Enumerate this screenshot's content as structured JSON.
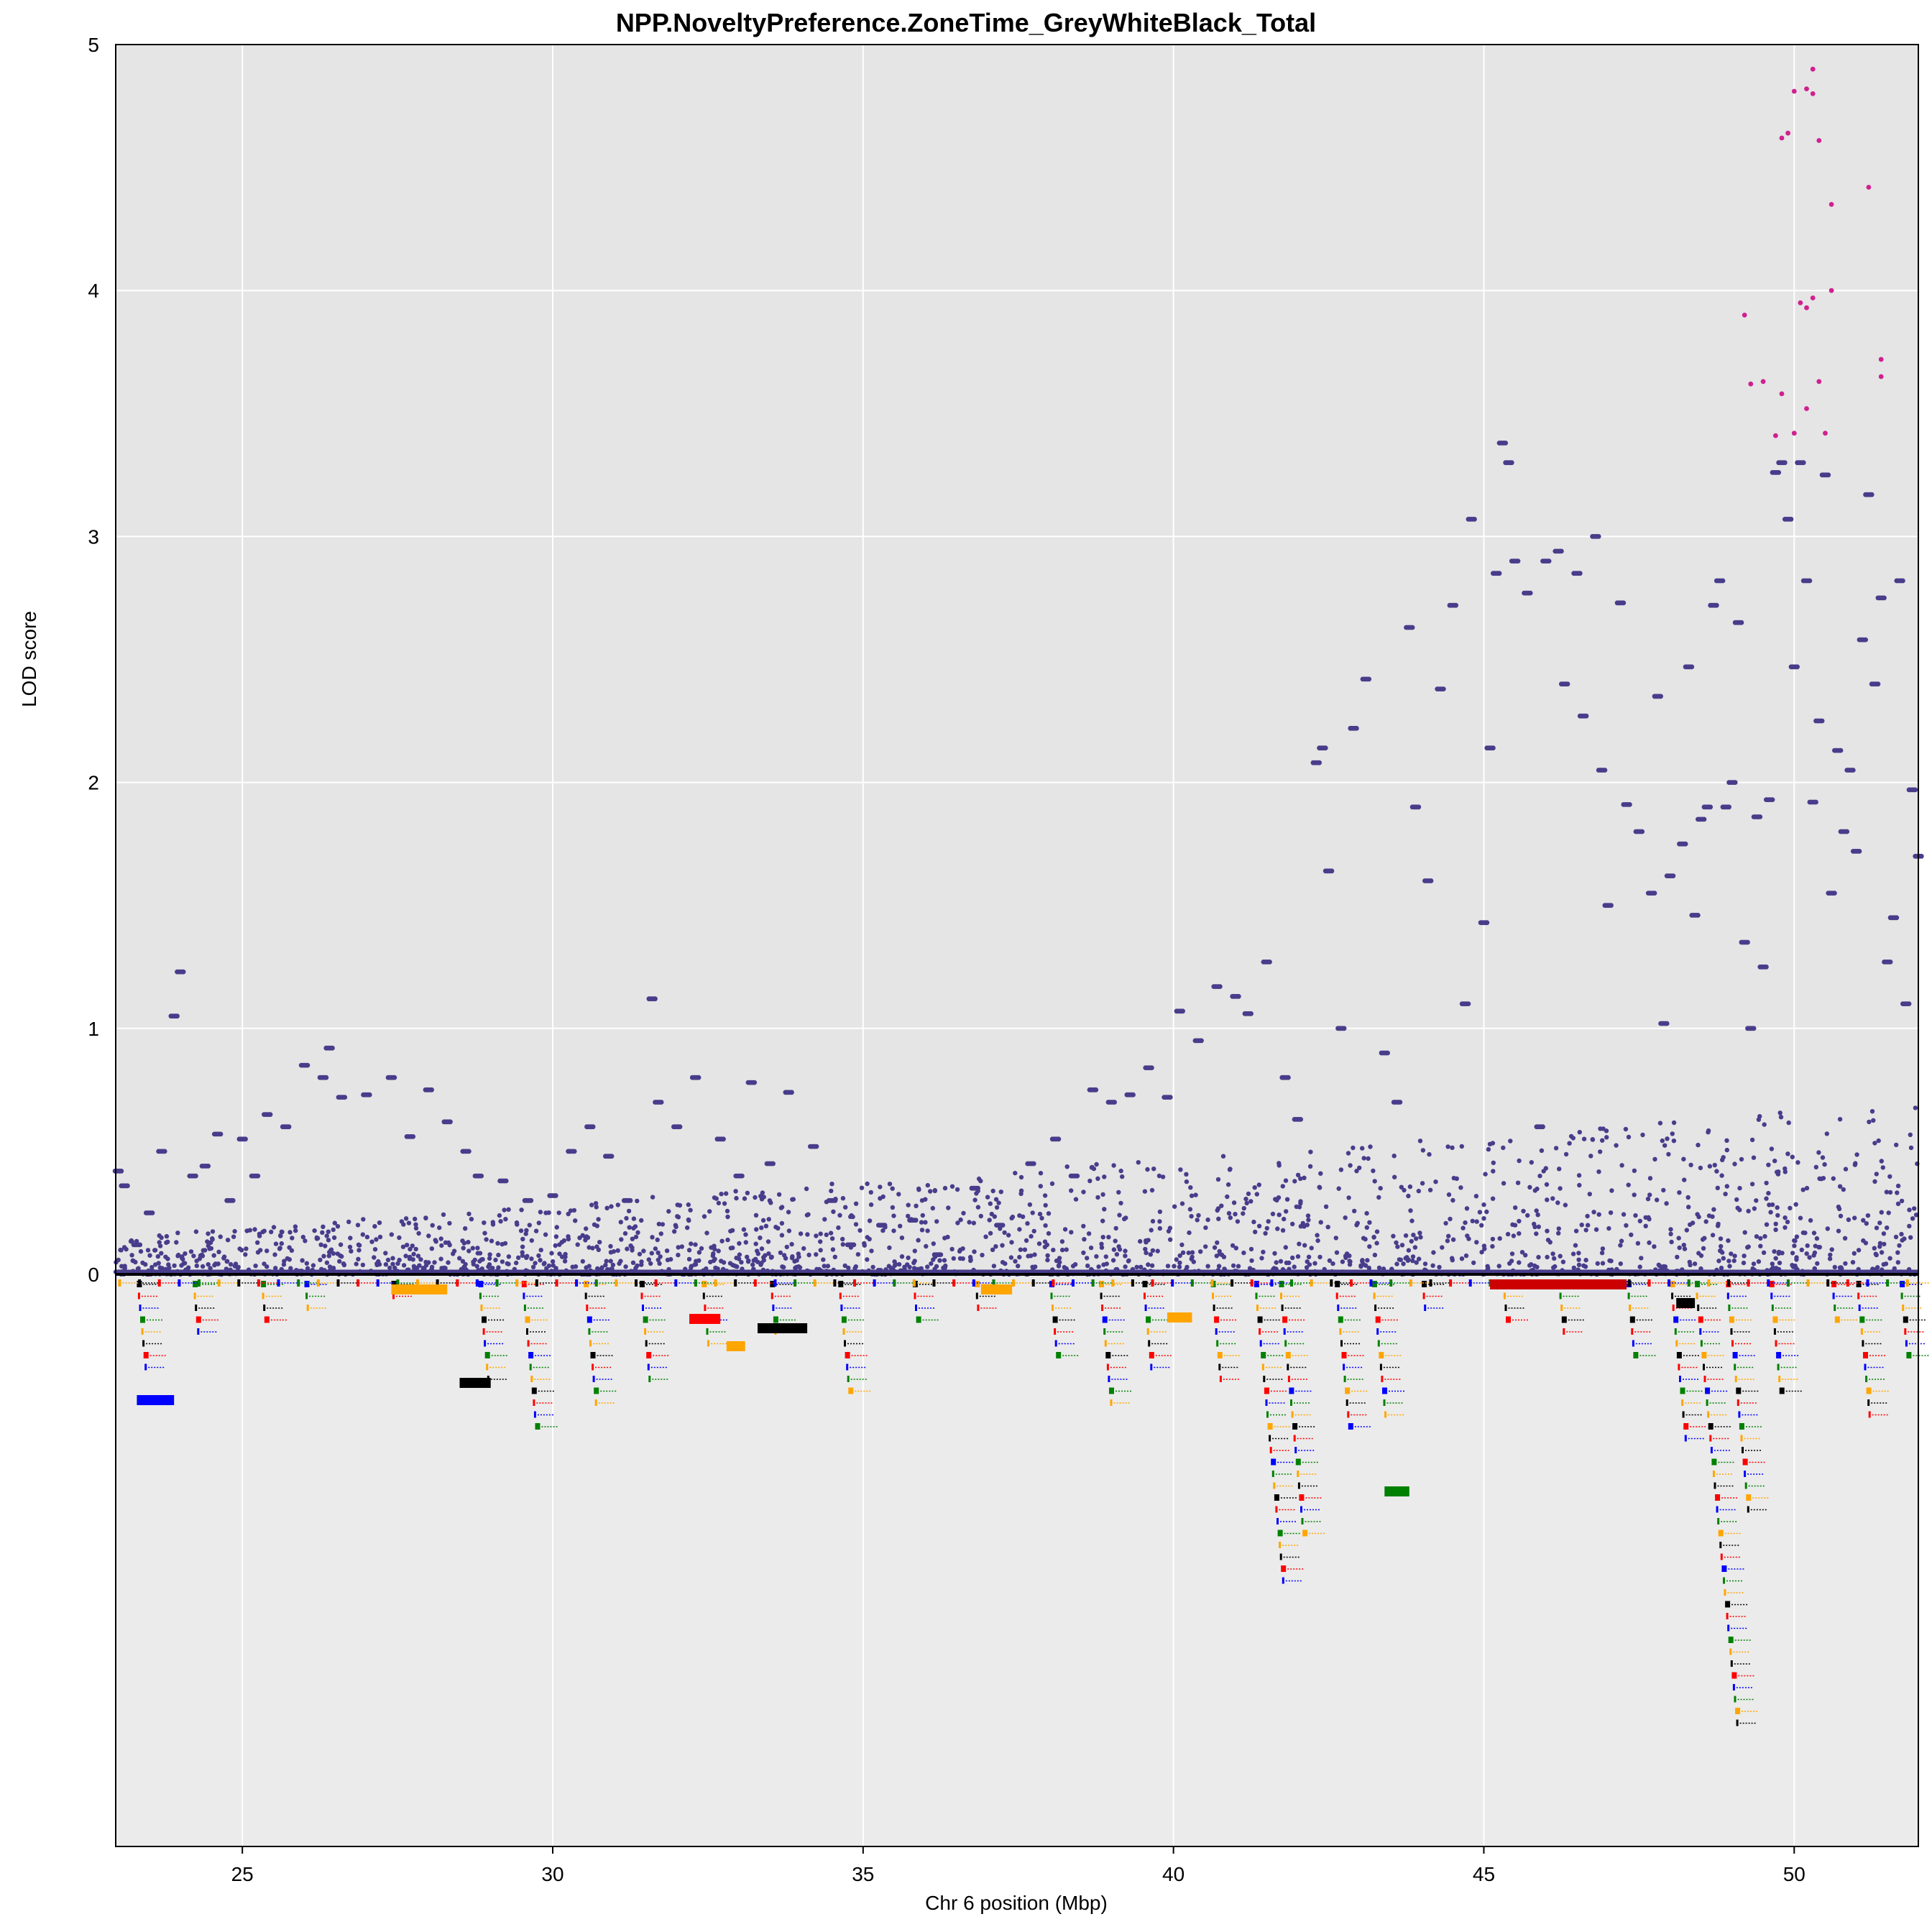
{
  "chart_data": {
    "type": "scatter",
    "title": "NPP.NoveltyPreference.ZoneTime_GreyWhiteBlack_Total",
    "xlabel": "Chr 6 position (Mbp)",
    "ylabel": "LOD score",
    "xlim": [
      22.96,
      52.0
    ],
    "ylim": [
      0,
      5
    ],
    "x_ticks": [
      25,
      30,
      35,
      40,
      45,
      50
    ],
    "y_ticks": [
      0,
      1,
      2,
      3,
      4,
      5
    ],
    "grid": true,
    "colors": {
      "panel_background": "#e5e5e5",
      "gene_panel_background": "#ebebeb",
      "grid": "#ffffff",
      "points": "#483d8b",
      "highlight_points": "#d02090",
      "gene_colors": [
        "#000000",
        "#ff0000",
        "#0000ff",
        "#008000",
        "#ffa500"
      ]
    },
    "series": [
      {
        "color": "#483d8b",
        "points": [
          [
            23.0,
            0.42
          ],
          [
            23.1,
            0.36
          ],
          [
            23.3,
            0.12
          ],
          [
            23.5,
            0.25
          ],
          [
            23.7,
            0.5
          ],
          [
            23.9,
            1.05
          ],
          [
            24.0,
            1.23
          ],
          [
            24.2,
            0.4
          ],
          [
            24.4,
            0.44
          ],
          [
            24.6,
            0.57
          ],
          [
            24.8,
            0.3
          ],
          [
            25.0,
            0.55
          ],
          [
            25.2,
            0.4
          ],
          [
            25.4,
            0.65
          ],
          [
            25.7,
            0.6
          ],
          [
            26.0,
            0.85
          ],
          [
            26.3,
            0.8
          ],
          [
            26.4,
            0.92
          ],
          [
            26.6,
            0.72
          ],
          [
            27.0,
            0.73
          ],
          [
            27.4,
            0.8
          ],
          [
            27.7,
            0.56
          ],
          [
            28.0,
            0.75
          ],
          [
            28.3,
            0.62
          ],
          [
            28.6,
            0.5
          ],
          [
            28.8,
            0.4
          ],
          [
            29.2,
            0.38
          ],
          [
            29.6,
            0.3
          ],
          [
            30.0,
            0.32
          ],
          [
            30.3,
            0.5
          ],
          [
            30.6,
            0.6
          ],
          [
            30.9,
            0.48
          ],
          [
            31.2,
            0.3
          ],
          [
            31.6,
            1.12
          ],
          [
            31.7,
            0.7
          ],
          [
            32.0,
            0.6
          ],
          [
            32.3,
            0.8
          ],
          [
            32.7,
            0.55
          ],
          [
            33.0,
            0.4
          ],
          [
            33.2,
            0.78
          ],
          [
            33.5,
            0.45
          ],
          [
            33.8,
            0.74
          ],
          [
            34.2,
            0.52
          ],
          [
            34.5,
            0.3
          ],
          [
            34.8,
            0.12
          ],
          [
            35.3,
            0.2
          ],
          [
            35.8,
            0.22
          ],
          [
            36.2,
            0.08
          ],
          [
            36.8,
            0.35
          ],
          [
            37.2,
            0.2
          ],
          [
            37.7,
            0.45
          ],
          [
            38.1,
            0.55
          ],
          [
            38.4,
            0.4
          ],
          [
            38.7,
            0.75
          ],
          [
            39.0,
            0.7
          ],
          [
            39.3,
            0.73
          ],
          [
            39.6,
            0.84
          ],
          [
            39.9,
            0.72
          ],
          [
            40.1,
            1.07
          ],
          [
            40.4,
            0.95
          ],
          [
            40.7,
            1.17
          ],
          [
            41.0,
            1.13
          ],
          [
            41.2,
            1.06
          ],
          [
            41.5,
            1.27
          ],
          [
            41.8,
            0.8
          ],
          [
            42.0,
            0.63
          ],
          [
            42.3,
            2.08
          ],
          [
            42.4,
            2.14
          ],
          [
            42.5,
            1.64
          ],
          [
            42.7,
            1.0
          ],
          [
            42.9,
            2.22
          ],
          [
            43.1,
            2.42
          ],
          [
            43.4,
            0.9
          ],
          [
            43.6,
            0.7
          ],
          [
            43.8,
            2.63
          ],
          [
            43.9,
            1.9
          ],
          [
            44.1,
            1.6
          ],
          [
            44.3,
            2.38
          ],
          [
            44.5,
            2.72
          ],
          [
            44.7,
            1.1
          ],
          [
            44.8,
            3.07
          ],
          [
            45.0,
            1.43
          ],
          [
            45.1,
            2.14
          ],
          [
            45.2,
            2.85
          ],
          [
            45.3,
            3.38
          ],
          [
            45.4,
            3.3
          ],
          [
            45.5,
            2.9
          ],
          [
            45.7,
            2.77
          ],
          [
            45.9,
            0.6
          ],
          [
            46.0,
            2.9
          ],
          [
            46.2,
            2.94
          ],
          [
            46.3,
            2.4
          ],
          [
            46.5,
            2.85
          ],
          [
            46.6,
            2.27
          ],
          [
            46.8,
            3.0
          ],
          [
            46.9,
            2.05
          ],
          [
            47.0,
            1.5
          ],
          [
            47.2,
            2.73
          ],
          [
            47.3,
            1.91
          ],
          [
            47.5,
            1.8
          ],
          [
            47.7,
            1.55
          ],
          [
            47.8,
            2.35
          ],
          [
            47.9,
            1.02
          ],
          [
            48.0,
            1.62
          ],
          [
            48.2,
            1.75
          ],
          [
            48.3,
            2.47
          ],
          [
            48.4,
            1.46
          ],
          [
            48.5,
            1.85
          ],
          [
            48.6,
            1.9
          ],
          [
            48.7,
            2.72
          ],
          [
            48.8,
            2.82
          ],
          [
            48.9,
            1.9
          ],
          [
            49.0,
            2.0
          ],
          [
            49.1,
            2.65
          ],
          [
            49.2,
            1.35
          ],
          [
            49.3,
            1.0
          ],
          [
            49.4,
            1.86
          ],
          [
            49.5,
            1.25
          ],
          [
            49.6,
            1.93
          ],
          [
            49.7,
            3.26
          ],
          [
            49.8,
            3.3
          ],
          [
            49.9,
            3.07
          ],
          [
            50.0,
            2.47
          ],
          [
            50.1,
            3.3
          ],
          [
            50.2,
            2.82
          ],
          [
            50.3,
            1.92
          ],
          [
            50.4,
            2.25
          ],
          [
            50.5,
            3.25
          ],
          [
            50.6,
            1.55
          ],
          [
            50.7,
            2.13
          ],
          [
            50.8,
            1.8
          ],
          [
            50.9,
            2.05
          ],
          [
            51.0,
            1.72
          ],
          [
            51.1,
            2.58
          ],
          [
            51.2,
            3.17
          ],
          [
            51.3,
            2.4
          ],
          [
            51.4,
            2.75
          ],
          [
            51.5,
            1.27
          ],
          [
            51.6,
            1.45
          ],
          [
            51.7,
            2.82
          ],
          [
            51.8,
            1.1
          ],
          [
            51.9,
            1.97
          ],
          [
            52.0,
            1.7
          ]
        ]
      },
      {
        "color": "#d02090",
        "points": [
          [
            49.2,
            3.9
          ],
          [
            49.3,
            3.62
          ],
          [
            49.5,
            3.63
          ],
          [
            49.7,
            3.41
          ],
          [
            49.8,
            3.58
          ],
          [
            49.8,
            4.62
          ],
          [
            49.9,
            4.64
          ],
          [
            50.0,
            3.42
          ],
          [
            50.0,
            4.81
          ],
          [
            50.1,
            3.95
          ],
          [
            50.2,
            4.82
          ],
          [
            50.2,
            3.93
          ],
          [
            50.2,
            3.52
          ],
          [
            50.3,
            4.9
          ],
          [
            50.3,
            4.8
          ],
          [
            50.3,
            3.97
          ],
          [
            50.4,
            3.63
          ],
          [
            50.4,
            4.61
          ],
          [
            50.5,
            3.42
          ],
          [
            50.6,
            4.35
          ],
          [
            50.6,
            4.0
          ],
          [
            51.2,
            4.42
          ],
          [
            51.4,
            3.72
          ],
          [
            51.4,
            3.65
          ]
        ]
      }
    ]
  }
}
